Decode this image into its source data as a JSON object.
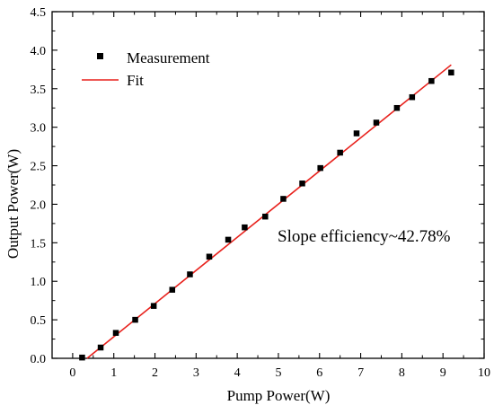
{
  "chart_data": {
    "type": "scatter",
    "title": "",
    "xlabel": "Pump Power(W)",
    "ylabel": "Output Power(W)",
    "xlim": [
      -0.5,
      10
    ],
    "ylim": [
      0,
      4.5
    ],
    "xticks": [
      0,
      1,
      2,
      3,
      4,
      5,
      6,
      7,
      8,
      9,
      10
    ],
    "yticks": [
      0.0,
      0.5,
      1.0,
      1.5,
      2.0,
      2.5,
      3.0,
      3.5,
      4.0,
      4.5
    ],
    "x_minor_step": 0.5,
    "y_minor_step": 0.25,
    "grid": false,
    "legend_position": "top-left",
    "annotation": "Slope efficiency~42.78%",
    "series": [
      {
        "name": "Measurement",
        "kind": "scatter",
        "color": "#000000",
        "marker": "square",
        "x": [
          0.23,
          0.68,
          1.05,
          1.52,
          1.97,
          2.42,
          2.85,
          3.32,
          3.78,
          4.18,
          4.68,
          5.12,
          5.58,
          6.02,
          6.5,
          6.9,
          7.38,
          7.88,
          8.25,
          8.72,
          9.2
        ],
        "y": [
          0.01,
          0.14,
          0.33,
          0.5,
          0.68,
          0.89,
          1.09,
          1.32,
          1.54,
          1.7,
          1.84,
          2.07,
          2.27,
          2.47,
          2.67,
          2.92,
          3.06,
          3.25,
          3.39,
          3.6,
          3.71
        ]
      },
      {
        "name": "Fit",
        "kind": "line",
        "color": "#e8211c",
        "x": [
          0.35,
          9.2
        ],
        "y": [
          0.0,
          3.81
        ]
      }
    ]
  }
}
